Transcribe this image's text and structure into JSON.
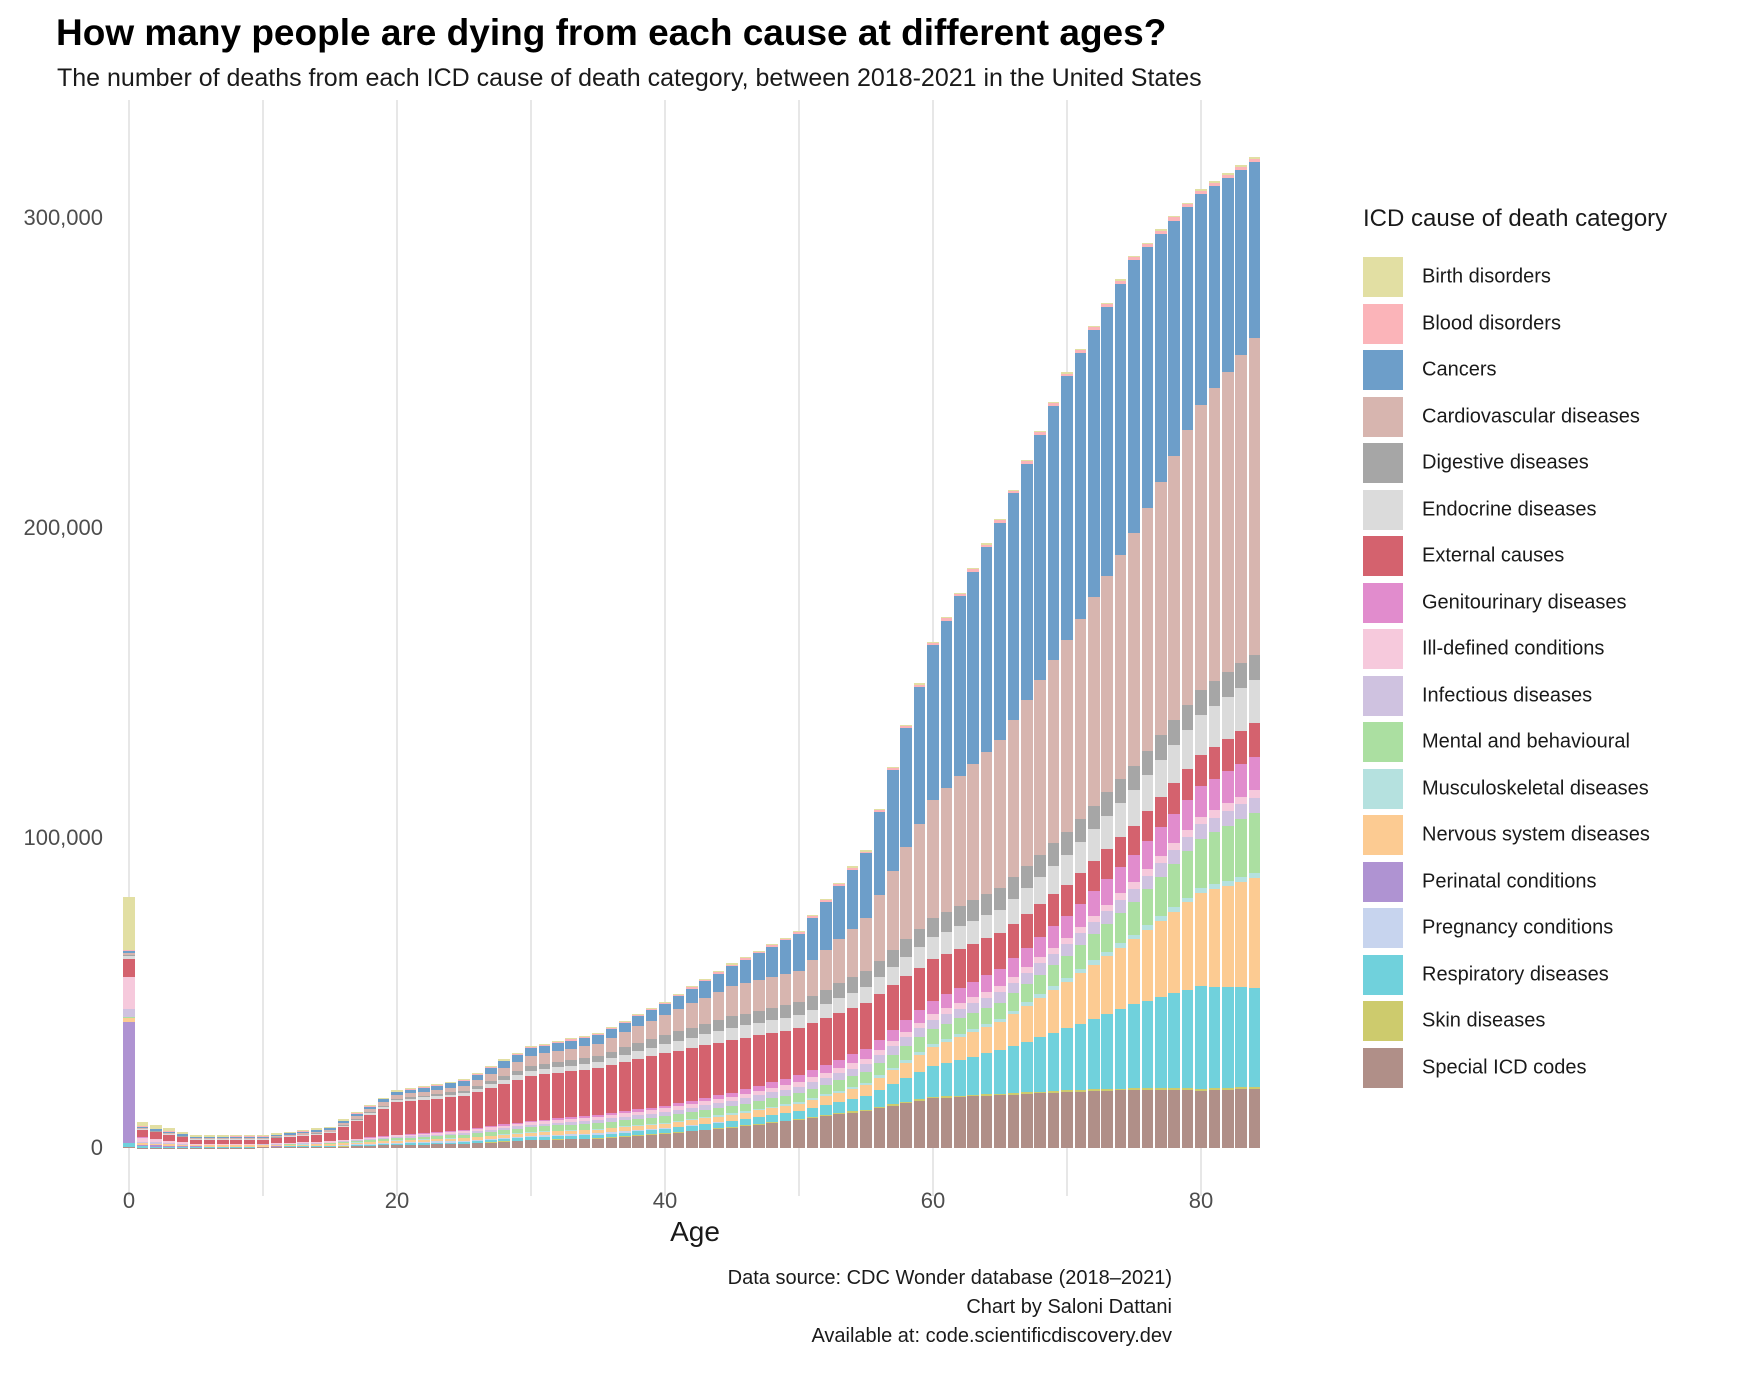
{
  "header": {
    "title": "How many people are dying from each cause at different ages?",
    "subtitle": "The number of deaths from each ICD cause of death category, between 2018-2021 in the United States"
  },
  "caption": {
    "lines": [
      "Data source: CDC Wonder database (2018–2021)",
      "Chart by Saloni Dattani",
      "Available at: code.scientificdiscovery.dev"
    ]
  },
  "legend": {
    "title": "ICD cause of death category"
  },
  "chart_data": {
    "type": "bar",
    "stacked": true,
    "title": "How many people are dying from each cause at different ages?",
    "xlabel": "Age",
    "ylabel": "",
    "xlim": [
      0,
      84
    ],
    "ylim": [
      0,
      330000
    ],
    "grid": "vertical-only",
    "legend_position": "right",
    "x_ticks": [
      0,
      20,
      40,
      60,
      80
    ],
    "gridline_ages": [
      0,
      10,
      20,
      30,
      40,
      50,
      60,
      70,
      80
    ],
    "y_ticks": [
      {
        "value": 0,
        "label": "0"
      },
      {
        "value": 100000,
        "label": "100,000"
      },
      {
        "value": 200000,
        "label": "200,000"
      },
      {
        "value": 300000,
        "label": "300,000"
      }
    ],
    "note": "Single-year-of-age stacked bars, ages 0-84. Series digitized at anchor ages and linearly interpolated between anchors. Stacking order bottom-to-top is the reverse of legend order (Special ICD codes at bottom, Birth disorders at top).",
    "anchor_ages": [
      0,
      1,
      5,
      10,
      15,
      20,
      25,
      30,
      35,
      40,
      45,
      50,
      55,
      60,
      65,
      70,
      75,
      80,
      84
    ],
    "series": [
      {
        "name": "Birth disorders",
        "color": "#e2dfa3",
        "values": [
          17100,
          1400,
          500,
          400,
          400,
          400,
          350,
          350,
          350,
          350,
          350,
          400,
          400,
          400,
          400,
          400,
          400,
          500,
          600
        ]
      },
      {
        "name": "Blood disorders",
        "color": "#fbb4b9",
        "values": [
          300,
          150,
          100,
          100,
          150,
          200,
          250,
          300,
          350,
          400,
          450,
          500,
          600,
          700,
          800,
          900,
          1000,
          1000,
          1000
        ]
      },
      {
        "name": "Cancers",
        "color": "#6d9ec9",
        "values": [
          600,
          450,
          450,
          500,
          600,
          1000,
          1500,
          2400,
          2800,
          3500,
          6500,
          11900,
          21000,
          50000,
          70000,
          85000,
          88000,
          68000,
          57000
        ]
      },
      {
        "name": "Cardiovascular diseases",
        "color": "#d7b5af",
        "values": [
          650,
          250,
          200,
          250,
          500,
          1200,
          1600,
          3300,
          3800,
          6500,
          9800,
          10000,
          17000,
          38000,
          48000,
          62000,
          75000,
          92000,
          102000
        ]
      },
      {
        "name": "Digestive diseases",
        "color": "#a6a6a6",
        "values": [
          500,
          150,
          100,
          100,
          200,
          400,
          800,
          1600,
          2000,
          3000,
          3700,
          4300,
          5200,
          6200,
          7000,
          7500,
          7800,
          8000,
          8100
        ]
      },
      {
        "name": "Endocrine diseases",
        "color": "#dbdbdb",
        "values": [
          700,
          250,
          150,
          200,
          350,
          700,
          900,
          1600,
          2000,
          2900,
          3900,
          4200,
          5000,
          7000,
          7500,
          9500,
          11500,
          13000,
          13900
        ]
      },
      {
        "name": "External causes",
        "color": "#d4626e",
        "values": [
          5800,
          2400,
          1300,
          1300,
          2500,
          10500,
          11000,
          14500,
          15000,
          17000,
          17000,
          15200,
          15000,
          13500,
          11500,
          10000,
          9500,
          10000,
          11000
        ]
      },
      {
        "name": "Genitourinary diseases",
        "color": "#e18ccd",
        "values": [
          300,
          60,
          40,
          50,
          80,
          150,
          250,
          400,
          600,
          850,
          1300,
          2100,
          3100,
          4300,
          5600,
          7200,
          8800,
          10000,
          10600
        ]
      },
      {
        "name": "Ill-defined conditions",
        "color": "#f6c9dc",
        "values": [
          10300,
          1300,
          200,
          200,
          350,
          550,
          700,
          850,
          1000,
          1200,
          1400,
          1600,
          1700,
          1800,
          1900,
          2000,
          2200,
          2400,
          2600
        ]
      },
      {
        "name": "Infectious diseases",
        "color": "#cfc2e0",
        "values": [
          2600,
          500,
          250,
          200,
          250,
          350,
          550,
          800,
          1100,
          1400,
          1700,
          2000,
          2500,
          3000,
          3400,
          3800,
          4200,
          4600,
          4800
        ]
      },
      {
        "name": "Mental and behavioural",
        "color": "#abdfa1",
        "values": [
          50,
          30,
          30,
          60,
          200,
          700,
          1000,
          1600,
          1900,
          2000,
          2300,
          2900,
          3600,
          5000,
          5200,
          7000,
          10500,
          16000,
          19400
        ]
      },
      {
        "name": "Musculoskeletal diseases",
        "color": "#b5e1df",
        "values": [
          30,
          20,
          20,
          30,
          50,
          80,
          120,
          180,
          250,
          320,
          420,
          550,
          750,
          950,
          1150,
          1350,
          1500,
          1600,
          1600
        ]
      },
      {
        "name": "Nervous system diseases",
        "color": "#fccb92",
        "values": [
          1300,
          450,
          350,
          400,
          500,
          650,
          800,
          1000,
          1200,
          1500,
          1900,
          2400,
          3300,
          6000,
          9000,
          15000,
          21000,
          30000,
          35500
        ]
      },
      {
        "name": "Perinatal conditions",
        "color": "#af93d2",
        "values": [
          39000,
          600,
          100,
          50,
          30,
          20,
          20,
          10,
          10,
          10,
          0,
          0,
          0,
          0,
          0,
          0,
          0,
          0,
          0
        ]
      },
      {
        "name": "Pregnancy conditions",
        "color": "#c7d4ee",
        "values": [
          0,
          0,
          0,
          0,
          100,
          350,
          500,
          550,
          450,
          250,
          80,
          0,
          0,
          0,
          0,
          0,
          0,
          0,
          0
        ]
      },
      {
        "name": "Respiratory diseases",
        "color": "#70d1dc",
        "values": [
          1300,
          350,
          250,
          250,
          300,
          400,
          550,
          800,
          1100,
          1400,
          2000,
          2600,
          4500,
          10000,
          14000,
          20000,
          27000,
          33000,
          32000
        ]
      },
      {
        "name": "Skin diseases",
        "color": "#cdcb6d",
        "values": [
          10,
          10,
          10,
          10,
          20,
          40,
          60,
          90,
          120,
          160,
          220,
          300,
          380,
          450,
          500,
          550,
          600,
          650,
          650
        ]
      },
      {
        "name": "Special ICD codes",
        "color": "#b08f88",
        "values": [
          400,
          100,
          80,
          100,
          300,
          900,
          1200,
          2500,
          3000,
          4500,
          6500,
          9000,
          12000,
          16000,
          17000,
          18000,
          18700,
          18500,
          19000
        ]
      }
    ]
  }
}
